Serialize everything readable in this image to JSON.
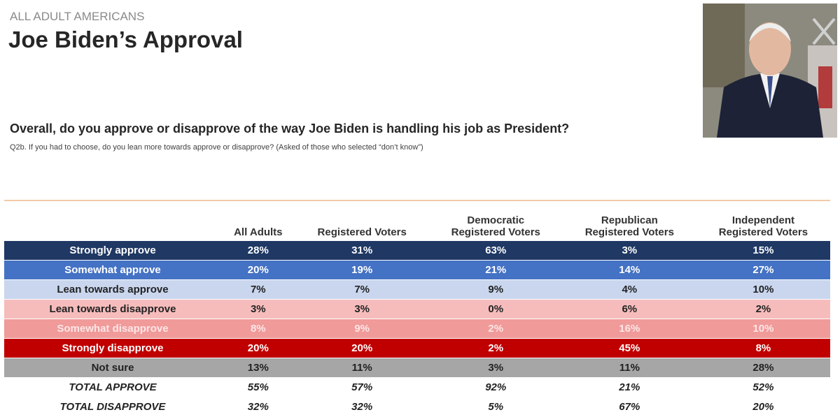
{
  "header": {
    "kicker": "ALL ADULT AMERICANS",
    "title": "Joe Biden’s Approval"
  },
  "question": "Overall, do you approve or disapprove of the way Joe Biden is handling his job as President?",
  "subquestion": "Q2b. If you had to choose, do you lean more towards approve or disapprove? (Asked of those who selected “don’t know”)",
  "table": {
    "columns": [
      [
        "All Adults"
      ],
      [
        "Registered Voters"
      ],
      [
        "Democratic",
        "Registered Voters"
      ],
      [
        "Republican",
        "Registered Voters"
      ],
      [
        "Independent",
        "Registered Voters"
      ]
    ],
    "rows": [
      {
        "label": "Strongly approve",
        "cells": [
          "28%",
          "31%",
          "63%",
          "3%",
          "15%"
        ]
      },
      {
        "label": "Somewhat approve",
        "cells": [
          "20%",
          "19%",
          "21%",
          "14%",
          "27%"
        ]
      },
      {
        "label": "Lean towards approve",
        "cells": [
          "7%",
          "7%",
          "9%",
          "4%",
          "10%"
        ]
      },
      {
        "label": "Lean towards disapprove",
        "cells": [
          "3%",
          "3%",
          "0%",
          "6%",
          "2%"
        ]
      },
      {
        "label": "Somewhat disapprove",
        "cells": [
          "8%",
          "9%",
          "2%",
          "16%",
          "10%"
        ]
      },
      {
        "label": "Strongly disapprove",
        "cells": [
          "20%",
          "20%",
          "2%",
          "45%",
          "8%"
        ]
      },
      {
        "label": "Not sure",
        "cells": [
          "13%",
          "11%",
          "3%",
          "11%",
          "28%"
        ]
      },
      {
        "label": "TOTAL APPROVE",
        "cells": [
          "55%",
          "57%",
          "92%",
          "21%",
          "52%"
        ]
      },
      {
        "label": "TOTAL DISAPPROVE",
        "cells": [
          "32%",
          "32%",
          "5%",
          "67%",
          "20%"
        ]
      }
    ]
  }
}
